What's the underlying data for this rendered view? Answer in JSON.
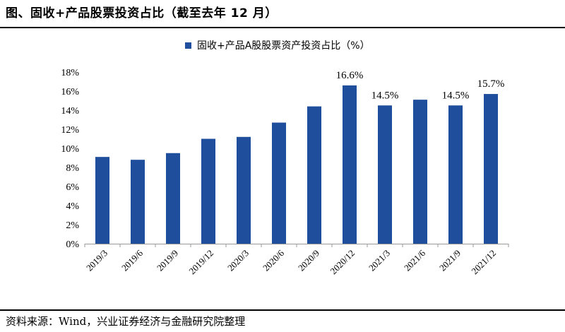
{
  "figure": {
    "title": "图、固收+产品股票投资占比（截至去年 12 月）",
    "source": "资料来源：Wind，兴业证券经济与金融研究院整理"
  },
  "chart_data": {
    "type": "bar",
    "title": "",
    "xlabel": "",
    "ylabel": "",
    "legend": {
      "position": "top-center"
    },
    "categories": [
      "2019/3",
      "2019/6",
      "2019/9",
      "2019/12",
      "2020/3",
      "2020/6",
      "2020/9",
      "2020/12",
      "2021/3",
      "2021/6",
      "2021/9",
      "2021/12"
    ],
    "series": [
      {
        "name": "固收+产品A股股票资产投资占比（%）",
        "values": [
          9.1,
          8.8,
          9.5,
          11.0,
          11.2,
          12.7,
          14.4,
          16.6,
          14.5,
          15.1,
          14.5,
          15.7
        ],
        "color": "#1f4e9c"
      }
    ],
    "ylim": [
      0,
      18
    ],
    "yticks": [
      "0%",
      "2%",
      "4%",
      "6%",
      "8%",
      "10%",
      "12%",
      "14%",
      "16%",
      "18%"
    ],
    "data_labels": [
      {
        "category": "2020/12",
        "text": "16.6%"
      },
      {
        "category": "2021/3",
        "text": "14.5%"
      },
      {
        "category": "2021/9",
        "text": "14.5%"
      },
      {
        "category": "2021/12",
        "text": "15.7%"
      }
    ],
    "grid": false
  }
}
